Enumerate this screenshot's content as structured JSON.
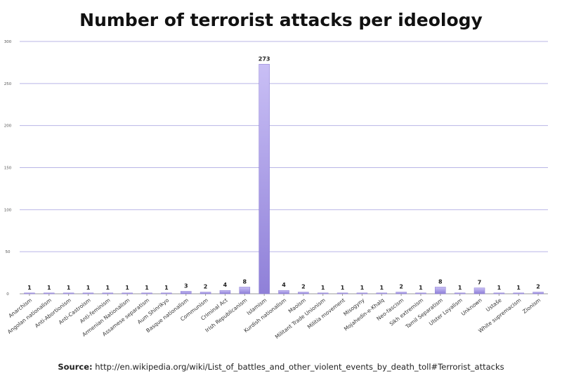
{
  "chart_data": {
    "type": "bar",
    "title": "Number of terrorist attacks per ideology",
    "xlabel": "",
    "ylabel": "",
    "ylim": [
      0,
      300
    ],
    "yticks": [
      0,
      50,
      100,
      150,
      200,
      250,
      300
    ],
    "grid": true,
    "legend": "none",
    "bar_color": "#a99be6",
    "categories": [
      "Anarchism",
      "Angolan nationalism",
      "Anti-Abortionism",
      "Anti-Castroism",
      "Anti-feminism",
      "Armenian Nationalism",
      "Assamese separatism",
      "Aum Shinrikyo",
      "Basque nationalism",
      "Communism",
      "Criminal Act",
      "Irish Republicanism",
      "Islamism",
      "Kurdish nationalism",
      "Maoism",
      "Militant Trade Unionism",
      "Militia movement",
      "Misogyny",
      "Mojahedin-e-Khalq",
      "Neo-fascism",
      "Sikh extremism",
      "Tamil Separatism",
      "Ulster Loyalism",
      "Unknown",
      "Ustaše",
      "White supremacism",
      "Zionism"
    ],
    "values": [
      1,
      1,
      1,
      1,
      1,
      1,
      1,
      1,
      3,
      2,
      4,
      8,
      273,
      4,
      2,
      1,
      1,
      1,
      1,
      2,
      1,
      8,
      1,
      7,
      1,
      1,
      2
    ]
  },
  "source": {
    "label": "Source:",
    "text": "http://en.wikipedia.org/wiki/List_of_battles_and_other_violent_events_by_death_toll#Terrorist_attacks"
  }
}
